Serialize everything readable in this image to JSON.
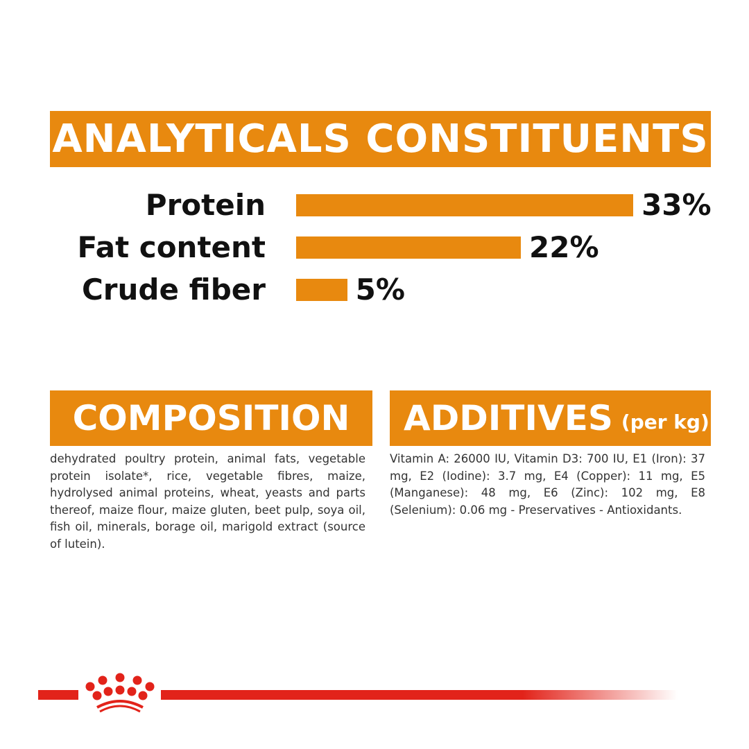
{
  "analytical": {
    "title": "ANALYTICALS CONSTITUENTS",
    "rows": [
      {
        "label": "Protein",
        "value": 33,
        "display": "33%"
      },
      {
        "label": "Fat content",
        "value": 22,
        "display": "22%"
      },
      {
        "label": "Crude fiber",
        "value": 5,
        "display": "5%"
      }
    ]
  },
  "chart_data": {
    "type": "bar",
    "orientation": "horizontal",
    "categories": [
      "Protein",
      "Fat content",
      "Crude fiber"
    ],
    "values": [
      33,
      22,
      5
    ],
    "title": "ANALYTICALS CONSTITUENTS"
  },
  "composition": {
    "title": "COMPOSITION",
    "text": "dehydrated poultry protein, animal fats, vegetable protein isolate*, rice, vegetable fibres, maize, hydrolysed animal proteins, wheat, yeasts and parts thereof, maize flour, maize gluten, beet pulp, soya oil, fish oil, minerals, borage oil, marigold extract (source of lutein)."
  },
  "additives": {
    "title": "ADDITIVES",
    "unit": "(per kg)",
    "text": "Vitamin A: 26000 IU, Vitamin D3: 700 IU, E1 (Iron): 37 mg, E2 (Iodine): 3.7 mg, E4 (Copper): 11 mg, E5 (Manganese): 48 mg, E6 (Zinc): 102 mg, E8 (Selenium): 0.06 mg - Preservatives - Antioxidants."
  },
  "colors": {
    "accent": "#e8890f",
    "brand_red": "#e2231a"
  },
  "logo": {
    "icon": "royal-canin-crown-icon"
  }
}
